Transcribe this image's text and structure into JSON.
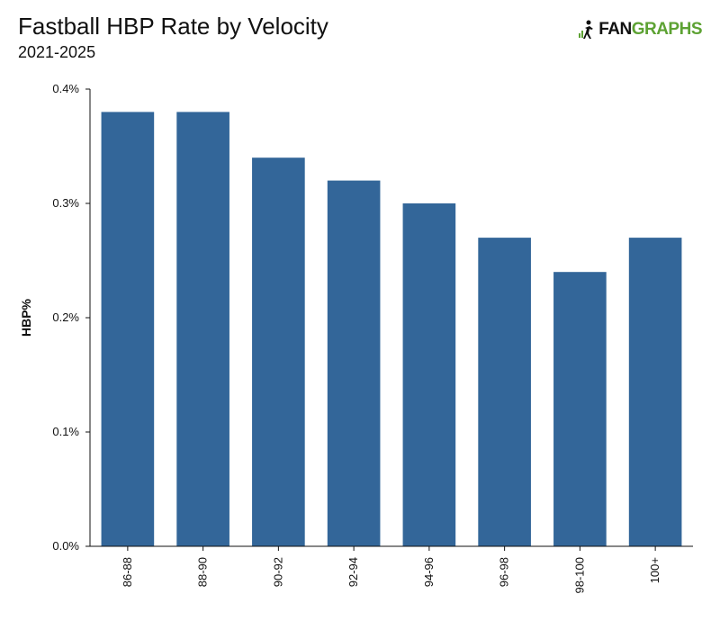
{
  "header": {
    "title": "Fastball HBP Rate by Velocity",
    "subtitle": "2021-2025"
  },
  "logo": {
    "text_fan": "FAN",
    "text_graphs": "GRAPHS",
    "icon": "fangraphs-logo-icon",
    "colors": {
      "fan": "#111111",
      "graphs": "#5da233"
    }
  },
  "colors": {
    "bar": "#336699",
    "axis": "#111111"
  },
  "chart_data": {
    "type": "bar",
    "title": "Fastball HBP Rate by Velocity",
    "subtitle": "2021-2025",
    "xlabel": "",
    "ylabel": "HBP%",
    "categories": [
      "86-88",
      "88-90",
      "90-92",
      "92-94",
      "94-96",
      "96-98",
      "98-100",
      "100+"
    ],
    "values": [
      0.38,
      0.38,
      0.34,
      0.32,
      0.3,
      0.27,
      0.24,
      0.27
    ],
    "value_unit": "%",
    "ylim": [
      0,
      0.4
    ],
    "yticks": [
      "0.0%",
      "0.1%",
      "0.2%",
      "0.3%",
      "0.4%"
    ],
    "ytick_values": [
      0,
      0.1,
      0.2,
      0.3,
      0.4
    ],
    "grid": false,
    "legend": "none",
    "x_tick_rotation": "vertical"
  }
}
